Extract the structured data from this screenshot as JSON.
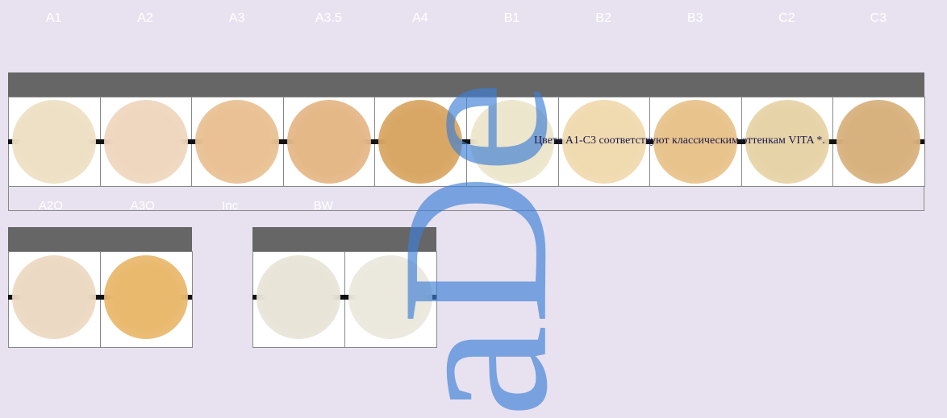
{
  "shade_labels": [
    "A1",
    "A2",
    "A3",
    "A3.5",
    "A4",
    "B1",
    "B2",
    "B3",
    "C2",
    "C3"
  ],
  "caption": "Цвета A1-C3 соответствуют классическим оттенкам VITA *.",
  "sub_labels": [
    "A2O",
    "A3O",
    "Inc",
    "BW"
  ],
  "watermark": "aDe"
}
